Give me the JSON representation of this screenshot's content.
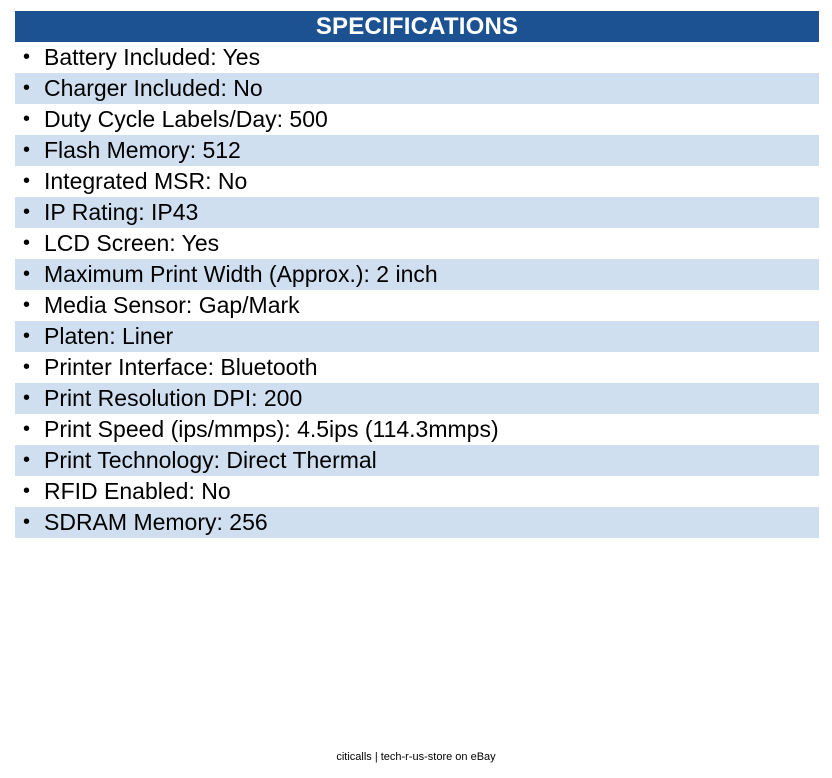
{
  "header": {
    "title": "SPECIFICATIONS"
  },
  "specs": [
    {
      "label": "Battery Included: Yes"
    },
    {
      "label": "Charger Included: No"
    },
    {
      "label": "Duty Cycle Labels/Day: 500"
    },
    {
      "label": "Flash Memory: 512"
    },
    {
      "label": "Integrated MSR: No"
    },
    {
      "label": "IP Rating: IP43"
    },
    {
      "label": "LCD Screen: Yes"
    },
    {
      "label": "Maximum Print Width (Approx.): 2 inch"
    },
    {
      "label": "Media Sensor: Gap/Mark"
    },
    {
      "label": "Platen: Liner"
    },
    {
      "label": "Printer Interface: Bluetooth"
    },
    {
      "label": "Print Resolution DPI: 200"
    },
    {
      "label": "Print Speed (ips/mmps): 4.5ips (114.3mmps)"
    },
    {
      "label": "Print Technology: Direct Thermal"
    },
    {
      "label": "RFID Enabled: No"
    },
    {
      "label": "SDRAM Memory: 256"
    }
  ],
  "footer": {
    "text": "citicalls | tech-r-us-store on eBay"
  },
  "colors": {
    "header_bg": "#1c5192",
    "stripe_bg": "#cfdff0"
  }
}
